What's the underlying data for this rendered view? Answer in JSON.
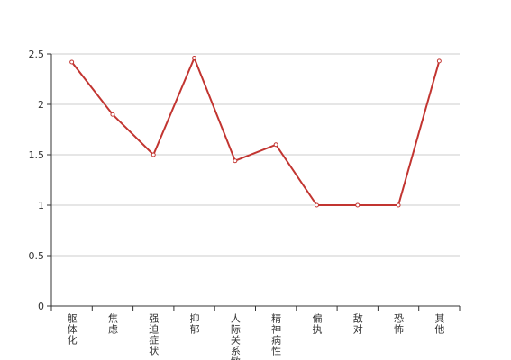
{
  "chart_data": {
    "type": "line",
    "categories": [
      "躯体化",
      "焦虑",
      "强迫症状",
      "抑郁",
      "人际关系敏感",
      "精神病性",
      "偏执",
      "敌对",
      "恐怖",
      "其他"
    ],
    "values": [
      2.42,
      1.9,
      1.5,
      2.46,
      1.44,
      1.6,
      1,
      1,
      1,
      2.43
    ],
    "color": "#c23531",
    "ylim": [
      0,
      2.5
    ],
    "yticks": [
      0,
      0.5,
      1,
      1.5,
      2,
      2.5
    ],
    "grid": true
  }
}
